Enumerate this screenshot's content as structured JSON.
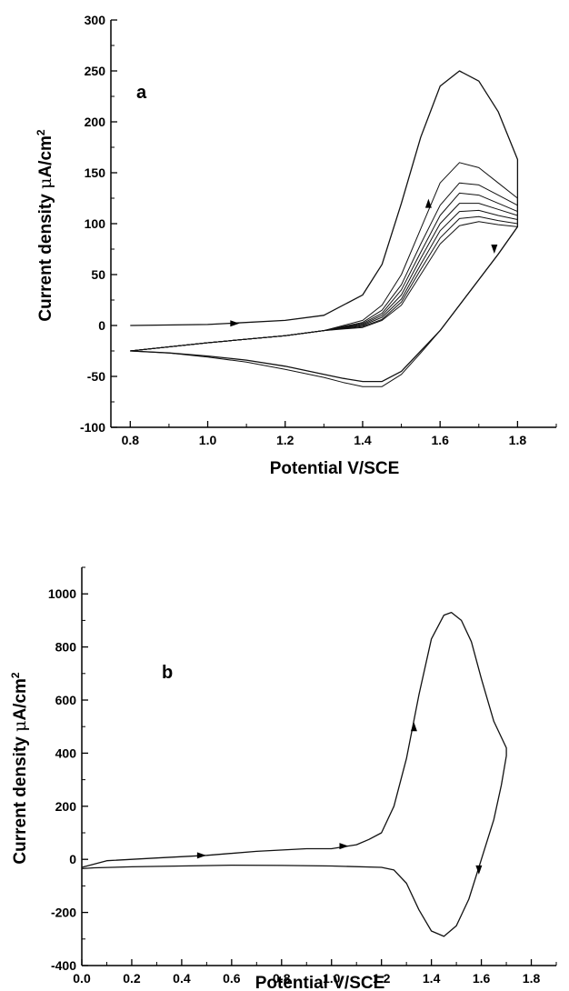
{
  "chart_data": [
    {
      "type": "line",
      "panel_label": "a",
      "xlabel": "Potential V/SCE",
      "ylabel_main": "Current density ",
      "ylabel_mu": "μ",
      "ylabel_unit": "A/cm",
      "ylabel_sup": "2",
      "xlim": [
        0.75,
        1.9
      ],
      "ylim": [
        -100,
        300
      ],
      "xticks": [
        0.8,
        1.0,
        1.2,
        1.4,
        1.6,
        1.8
      ],
      "xtick_labels": [
        "0.8",
        "1.0",
        "1.2",
        "1.4",
        "1.6",
        "1.8"
      ],
      "yticks": [
        -100,
        -50,
        0,
        50,
        100,
        150,
        200,
        250,
        300
      ],
      "ytick_labels": [
        "-100",
        "-50",
        "0",
        "50",
        "100",
        "150",
        "200",
        "250",
        "300"
      ],
      "series": [
        {
          "x": [
            0.8,
            1.0,
            1.2,
            1.3,
            1.4,
            1.45,
            1.5,
            1.55,
            1.6,
            1.65,
            1.7,
            1.75,
            1.8,
            1.8,
            1.75,
            1.7,
            1.65,
            1.6,
            1.55,
            1.5,
            1.45,
            1.4,
            1.35,
            1.3,
            1.2,
            1.1,
            1.0,
            0.9,
            0.8
          ],
          "y": [
            0,
            1,
            5,
            10,
            30,
            60,
            120,
            185,
            235,
            250,
            240,
            210,
            163,
            97,
            70,
            45,
            20,
            -5,
            -25,
            -45,
            -55,
            -55,
            -52,
            -48,
            -40,
            -34,
            -30,
            -27,
            -25
          ]
        },
        {
          "x": [
            0.8,
            1.0,
            1.2,
            1.3,
            1.4,
            1.45,
            1.5,
            1.55,
            1.6,
            1.65,
            1.7,
            1.75,
            1.8,
            1.8,
            1.75,
            1.7,
            1.65,
            1.6,
            1.55,
            1.5,
            1.45,
            1.4,
            1.35,
            1.3,
            1.2,
            1.1,
            1.0,
            0.9,
            0.8
          ],
          "y": [
            -25,
            -17,
            -10,
            -5,
            5,
            20,
            50,
            95,
            140,
            160,
            155,
            140,
            125,
            97,
            70,
            45,
            20,
            -5,
            -27,
            -48,
            -60,
            -60,
            -56,
            -51,
            -43,
            -36,
            -31,
            -27,
            -25
          ]
        },
        {
          "x": [
            0.8,
            1.0,
            1.2,
            1.3,
            1.4,
            1.45,
            1.5,
            1.55,
            1.6,
            1.65,
            1.7,
            1.75,
            1.8
          ],
          "y": [
            -25,
            -17,
            -10,
            -5,
            3,
            15,
            40,
            80,
            118,
            140,
            138,
            128,
            118
          ]
        },
        {
          "x": [
            0.8,
            1.0,
            1.2,
            1.3,
            1.4,
            1.45,
            1.5,
            1.55,
            1.6,
            1.65,
            1.7,
            1.75,
            1.8
          ],
          "y": [
            -25,
            -17,
            -10,
            -5,
            2,
            12,
            35,
            72,
            108,
            130,
            128,
            120,
            112
          ]
        },
        {
          "x": [
            0.8,
            1.0,
            1.2,
            1.3,
            1.4,
            1.45,
            1.5,
            1.55,
            1.6,
            1.65,
            1.7,
            1.75,
            1.8
          ],
          "y": [
            -25,
            -17,
            -10,
            -5,
            1,
            10,
            30,
            66,
            100,
            120,
            120,
            114,
            108
          ]
        },
        {
          "x": [
            0.8,
            1.0,
            1.2,
            1.3,
            1.4,
            1.45,
            1.5,
            1.55,
            1.6,
            1.65,
            1.7,
            1.75,
            1.8
          ],
          "y": [
            -25,
            -17,
            -10,
            -5,
            0,
            8,
            26,
            60,
            93,
            112,
            113,
            108,
            104
          ]
        },
        {
          "x": [
            0.8,
            1.0,
            1.2,
            1.3,
            1.4,
            1.45,
            1.5,
            1.55,
            1.6,
            1.65,
            1.7,
            1.75,
            1.8
          ],
          "y": [
            -25,
            -17,
            -10,
            -5,
            -1,
            6,
            23,
            55,
            86,
            105,
            107,
            103,
            100
          ]
        },
        {
          "x": [
            0.8,
            1.0,
            1.2,
            1.3,
            1.4,
            1.45,
            1.5,
            1.55,
            1.6,
            1.65,
            1.7,
            1.75,
            1.8
          ],
          "y": [
            -25,
            -17,
            -10,
            -5,
            -2,
            5,
            20,
            50,
            80,
            98,
            102,
            99,
            97
          ]
        }
      ],
      "arrows": [
        {
          "x": 1.07,
          "y": 2,
          "dir": "right"
        },
        {
          "x": 1.57,
          "y": 120,
          "dir": "up"
        },
        {
          "x": 1.74,
          "y": 75,
          "dir": "down"
        }
      ]
    },
    {
      "type": "line",
      "panel_label": "b",
      "xlabel": "Potential V/SCE",
      "ylabel_main": "Current density ",
      "ylabel_mu": "μ",
      "ylabel_unit": "A/cm",
      "ylabel_sup": "2",
      "xlim": [
        0.0,
        1.9
      ],
      "ylim": [
        -400,
        1100
      ],
      "xticks": [
        0.0,
        0.2,
        0.4,
        0.6,
        0.8,
        1.0,
        1.2,
        1.4,
        1.6,
        1.8
      ],
      "xtick_labels": [
        "0.0",
        "0.2",
        "0.4",
        "0.6",
        "0.8",
        "1.0",
        "1.2",
        "1.4",
        "1.6",
        "1.8"
      ],
      "yticks": [
        -400,
        -200,
        0,
        200,
        400,
        600,
        800,
        1000
      ],
      "ytick_labels": [
        "-400",
        "-200",
        "0",
        "200",
        "400",
        "600",
        "800",
        "1000"
      ],
      "series": [
        {
          "x": [
            0.0,
            0.1,
            0.3,
            0.5,
            0.7,
            0.9,
            1.0,
            1.1,
            1.15,
            1.2,
            1.25,
            1.3,
            1.35,
            1.4,
            1.45,
            1.48,
            1.52,
            1.56,
            1.6,
            1.65,
            1.7,
            1.7,
            1.68,
            1.65,
            1.6,
            1.55,
            1.5,
            1.45,
            1.4,
            1.35,
            1.3,
            1.25,
            1.2,
            1.0,
            0.8,
            0.6,
            0.4,
            0.2,
            0.05,
            0.0
          ],
          "y": [
            -30,
            -5,
            5,
            15,
            30,
            40,
            40,
            55,
            75,
            100,
            200,
            380,
            620,
            830,
            920,
            930,
            900,
            820,
            680,
            520,
            420,
            390,
            280,
            150,
            0,
            -150,
            -250,
            -290,
            -270,
            -190,
            -90,
            -40,
            -30,
            -25,
            -23,
            -22,
            -25,
            -28,
            -32,
            -35
          ]
        }
      ],
      "arrows": [
        {
          "x": 0.48,
          "y": 15,
          "dir": "right"
        },
        {
          "x": 1.05,
          "y": 50,
          "dir": "right"
        },
        {
          "x": 1.33,
          "y": 500,
          "dir": "up"
        },
        {
          "x": 1.59,
          "y": -40,
          "dir": "down"
        }
      ]
    }
  ]
}
